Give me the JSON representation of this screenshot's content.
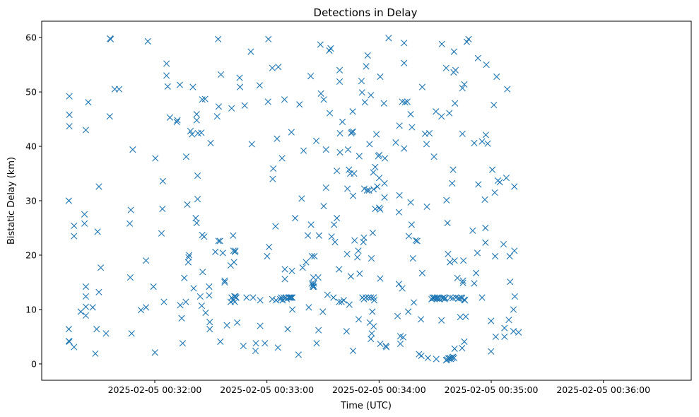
{
  "chart_data": {
    "type": "scatter",
    "title": "Detections in Delay",
    "xlabel": "Time (UTC)",
    "ylabel": "Bistatic Delay (km)",
    "marker": "x",
    "marker_color": "#1f77b4",
    "x_units": "seconds since 2025-02-05 00:31:00 UTC",
    "xlim": [
      -30.5,
      317
    ],
    "ylim": [
      -3,
      63
    ],
    "x_ticks": [
      {
        "value": 30,
        "label": "2025-02-05 00:32:00"
      },
      {
        "value": 90,
        "label": "2025-02-05 00:33:00"
      },
      {
        "value": 150,
        "label": "2025-02-05 00:34:00"
      },
      {
        "value": 210,
        "label": "2025-02-05 00:35:00"
      },
      {
        "value": 270,
        "label": "2025-02-05 00:36:00"
      }
    ],
    "y_ticks": [
      {
        "value": 0,
        "label": "0"
      },
      {
        "value": 10,
        "label": "10"
      },
      {
        "value": 20,
        "label": "20"
      },
      {
        "value": 30,
        "label": "30"
      },
      {
        "value": 40,
        "label": "40"
      },
      {
        "value": 50,
        "label": "50"
      },
      {
        "value": 60,
        "label": "60"
      }
    ],
    "points": [
      [
        -16,
        30
      ],
      [
        -16,
        6.4
      ],
      [
        -16,
        4.2
      ],
      [
        -15.7,
        4.1
      ],
      [
        -15.7,
        49.2
      ],
      [
        -15.7,
        45.8
      ],
      [
        -15.7,
        43.7
      ],
      [
        -13.2,
        25.4
      ],
      [
        -13.2,
        23.5
      ],
      [
        -13.2,
        3.1
      ],
      [
        -9.6,
        9.6
      ],
      [
        -7.6,
        27.5
      ],
      [
        -7.6,
        25.8
      ],
      [
        -6.9,
        43
      ],
      [
        -6.9,
        14.2
      ],
      [
        -6.9,
        12.4
      ],
      [
        -6.9,
        10.5
      ],
      [
        -6.9,
        8.9
      ],
      [
        -5.6,
        48.1
      ],
      [
        -3.2,
        10.4
      ],
      [
        -1.8,
        1.9
      ],
      [
        -1.1,
        6.4
      ],
      [
        -0.6,
        24.3
      ],
      [
        0.1,
        32.6
      ],
      [
        0.1,
        13.2
      ],
      [
        1.1,
        17.7
      ],
      [
        3.9,
        5.6
      ],
      [
        5.9,
        45.5
      ],
      [
        6.1,
        59.8
      ],
      [
        6.4,
        59.7
      ],
      [
        8.6,
        50.5
      ],
      [
        10.9,
        50.5
      ],
      [
        16.6,
        25.8
      ],
      [
        16.9,
        15.9
      ],
      [
        17.2,
        28.3
      ],
      [
        17.6,
        5.6
      ],
      [
        18.2,
        39.4
      ],
      [
        22.6,
        9.9
      ],
      [
        25.3,
        10.4
      ],
      [
        25.3,
        19
      ],
      [
        26.3,
        59.3
      ],
      [
        29.3,
        14.2
      ],
      [
        30.1,
        2.1
      ],
      [
        30.3,
        37.8
      ],
      [
        33.6,
        24
      ],
      [
        34.1,
        28.5
      ],
      [
        34.3,
        33.6
      ],
      [
        34.9,
        11.4
      ],
      [
        36.3,
        55.2
      ],
      [
        36.3,
        53
      ],
      [
        36.9,
        51
      ],
      [
        38.1,
        45.3
      ],
      [
        41.8,
        44.5
      ],
      [
        42.1,
        44.8
      ],
      [
        43.4,
        51.3
      ],
      [
        43.6,
        10.8
      ],
      [
        44.4,
        8.4
      ],
      [
        44.9,
        3.8
      ],
      [
        45.8,
        15.8
      ],
      [
        46.6,
        11.4
      ],
      [
        46.8,
        38.1
      ],
      [
        47.4,
        29.3
      ],
      [
        47.9,
        18.7
      ],
      [
        48.1,
        19.6
      ],
      [
        48.4,
        20
      ],
      [
        49.1,
        42.8
      ],
      [
        49.9,
        42.2
      ],
      [
        50.4,
        50.9
      ],
      [
        50.8,
        13.9
      ],
      [
        51.9,
        26.8
      ],
      [
        52.4,
        45.9
      ],
      [
        52.4,
        44.8
      ],
      [
        52.4,
        25.9
      ],
      [
        52.9,
        34.6
      ],
      [
        52.9,
        30.3
      ],
      [
        53.1,
        42.4
      ],
      [
        54.3,
        12.4
      ],
      [
        54.9,
        42.5
      ],
      [
        55.1,
        10.7
      ],
      [
        55.4,
        48.6
      ],
      [
        55.4,
        23.7
      ],
      [
        55.6,
        16.9
      ],
      [
        56.4,
        23.4
      ],
      [
        56.9,
        48.7
      ],
      [
        57.2,
        9.4
      ],
      [
        59.1,
        14.2
      ],
      [
        59.1,
        12.6
      ],
      [
        59.4,
        7.7
      ],
      [
        59.4,
        6.4
      ],
      [
        59.9,
        40.6
      ],
      [
        62.4,
        20.6
      ],
      [
        63.4,
        45.5
      ],
      [
        63.9,
        59.7
      ],
      [
        64.2,
        47.3
      ],
      [
        64.1,
        22.6
      ],
      [
        64.9,
        22.6
      ],
      [
        65.1,
        4.1
      ],
      [
        65.4,
        53.2
      ],
      [
        66.4,
        20.4
      ],
      [
        67.4,
        15
      ],
      [
        67.4,
        15.3
      ],
      [
        68.6,
        7.1
      ],
      [
        70.6,
        18.1
      ],
      [
        70.6,
        11.4
      ],
      [
        71.1,
        47
      ],
      [
        71.1,
        12.2
      ],
      [
        71.9,
        23.6
      ],
      [
        72.1,
        11.7
      ],
      [
        72.1,
        20.8
      ],
      [
        72.4,
        18.7
      ],
      [
        72.6,
        12.4
      ],
      [
        72.8,
        11.4
      ],
      [
        72.9,
        20.6
      ],
      [
        73.1,
        12.4
      ],
      [
        73.1,
        20.8
      ],
      [
        73.4,
        12.2
      ],
      [
        73.6,
        12.2
      ],
      [
        74.1,
        7.6
      ],
      [
        75.4,
        52.6
      ],
      [
        75.6,
        50.9
      ],
      [
        77.4,
        3.3
      ],
      [
        78.1,
        47.5
      ],
      [
        79.1,
        12.2
      ],
      [
        81.4,
        57.4
      ],
      [
        81.9,
        40.4
      ],
      [
        82.6,
        12.2
      ],
      [
        83.9,
        2.4
      ],
      [
        84.1,
        3.8
      ],
      [
        86.1,
        51.2
      ],
      [
        86.4,
        11.7
      ],
      [
        86.4,
        7
      ],
      [
        88.9,
        3.8
      ],
      [
        90.1,
        19.8
      ],
      [
        90.6,
        48.2
      ],
      [
        90.8,
        59.7
      ],
      [
        91.1,
        21.5
      ],
      [
        92.9,
        54.4
      ],
      [
        92.9,
        11.9
      ],
      [
        93.1,
        34
      ],
      [
        93.4,
        35.9
      ],
      [
        94.6,
        25.3
      ],
      [
        94.9,
        11.7
      ],
      [
        95.4,
        41.4
      ],
      [
        95.9,
        3
      ],
      [
        96.1,
        54.6
      ],
      [
        97.1,
        11.9
      ],
      [
        97.6,
        12.2
      ],
      [
        98.1,
        37.8
      ],
      [
        98.4,
        11.7
      ],
      [
        98.9,
        12.2
      ],
      [
        99.4,
        48.6
      ],
      [
        99.6,
        17.4
      ],
      [
        99.6,
        15.6
      ],
      [
        100.1,
        12.2
      ],
      [
        100.6,
        11.9
      ],
      [
        101.1,
        6.4
      ],
      [
        101.6,
        12.2
      ],
      [
        102.1,
        12.2
      ],
      [
        102.6,
        12.2
      ],
      [
        103.1,
        12.2
      ],
      [
        103.1,
        42.6
      ],
      [
        103.4,
        17.1
      ],
      [
        103.6,
        12.2
      ],
      [
        103.6,
        10
      ],
      [
        105.1,
        26.8
      ],
      [
        106.9,
        1.7
      ],
      [
        107.4,
        47.7
      ],
      [
        108.6,
        30.4
      ],
      [
        109.1,
        17.7
      ],
      [
        109.6,
        39.2
      ],
      [
        110.9,
        18.7
      ],
      [
        111.9,
        23.6
      ],
      [
        112.4,
        10.4
      ],
      [
        113.4,
        52.9
      ],
      [
        113.6,
        25.6
      ],
      [
        114.1,
        19.8
      ],
      [
        114.1,
        14.8
      ],
      [
        114.6,
        14.2
      ],
      [
        114.6,
        14.5
      ],
      [
        114.9,
        15.9
      ],
      [
        115.1,
        14.8
      ],
      [
        115.1,
        14.2
      ],
      [
        115.4,
        19.8
      ],
      [
        116.4,
        41
      ],
      [
        116.6,
        3.8
      ],
      [
        117.4,
        15.9
      ],
      [
        117.6,
        6.2
      ],
      [
        117.9,
        23.6
      ],
      [
        118.6,
        58.7
      ],
      [
        118.9,
        49.7
      ],
      [
        119.9,
        9.6
      ],
      [
        120.4,
        29
      ],
      [
        120.4,
        48.6
      ],
      [
        121.6,
        32.4
      ],
      [
        121.6,
        39.4
      ],
      [
        122.4,
        12.7
      ],
      [
        123.4,
        57.6
      ],
      [
        123.6,
        46.1
      ],
      [
        124.1,
        58
      ],
      [
        124.6,
        23.4
      ],
      [
        125.6,
        12.2
      ],
      [
        125.9,
        25.6
      ],
      [
        126.4,
        22.4
      ],
      [
        127.4,
        35.5
      ],
      [
        127.4,
        26.8
      ],
      [
        128.6,
        11.4
      ],
      [
        128.6,
        17.4
      ],
      [
        128.9,
        54
      ],
      [
        128.9,
        51.9
      ],
      [
        129.1,
        38.9
      ],
      [
        129.1,
        42.4
      ],
      [
        129.9,
        11.4
      ],
      [
        130.4,
        44.5
      ],
      [
        131.1,
        11.7
      ],
      [
        132.6,
        6
      ],
      [
        132.9,
        20.2
      ],
      [
        133.1,
        32.2
      ],
      [
        133.4,
        39.4
      ],
      [
        133.9,
        35.7
      ],
      [
        134.1,
        10.9
      ],
      [
        134.6,
        35
      ],
      [
        134.9,
        16.1
      ],
      [
        135.1,
        42.4
      ],
      [
        135.4,
        42.6
      ],
      [
        135.9,
        46.4
      ],
      [
        136.1,
        42.7
      ],
      [
        136.1,
        30.9
      ],
      [
        136.1,
        2.4
      ],
      [
        136.6,
        35
      ],
      [
        136.9,
        22.7
      ],
      [
        138.4,
        19.6
      ],
      [
        138.9,
        20.8
      ],
      [
        139.1,
        8.2
      ],
      [
        139.6,
        16.6
      ],
      [
        139.4,
        38.2
      ],
      [
        140.6,
        52
      ],
      [
        140.9,
        49.9
      ],
      [
        141.1,
        12.2
      ],
      [
        141.6,
        22.4
      ],
      [
        141.9,
        23.2
      ],
      [
        141.9,
        11.9
      ],
      [
        142.1,
        32.2
      ],
      [
        142.4,
        48.1
      ],
      [
        142.9,
        12.2
      ],
      [
        143.1,
        54.7
      ],
      [
        143.6,
        31.9
      ],
      [
        143.9,
        56.7
      ],
      [
        144.4,
        12.2
      ],
      [
        144.6,
        31.9
      ],
      [
        144.9,
        40.4
      ],
      [
        145.6,
        49.4
      ],
      [
        145.6,
        12.2
      ],
      [
        145.1,
        7.6
      ],
      [
        145.6,
        4.6
      ],
      [
        145.9,
        19.4
      ],
      [
        146.1,
        5.6
      ],
      [
        146.4,
        9.6
      ],
      [
        146.6,
        24.1
      ],
      [
        146.9,
        35.2
      ],
      [
        147.1,
        12.2
      ],
      [
        147.1,
        32.1
      ],
      [
        147.1,
        6.9
      ],
      [
        147.4,
        11.7
      ],
      [
        147.9,
        36.2
      ],
      [
        147.9,
        28.5
      ],
      [
        148.6,
        42.2
      ],
      [
        149.1,
        32.6
      ],
      [
        149.6,
        38.2
      ],
      [
        150.1,
        28.7
      ],
      [
        150.1,
        38.4
      ],
      [
        150.6,
        52.8
      ],
      [
        150.6,
        15.7
      ],
      [
        150.6,
        28.4
      ],
      [
        150.6,
        3.7
      ],
      [
        150.1,
        34.2
      ],
      [
        152.6,
        47.9
      ],
      [
        152.9,
        30.6
      ],
      [
        152.9,
        33.2
      ],
      [
        153.1,
        37.8
      ],
      [
        153.6,
        3.3
      ],
      [
        153.9,
        3.1
      ],
      [
        155.1,
        59.9
      ],
      [
        158.9,
        40.7
      ],
      [
        159.9,
        8.8
      ],
      [
        160.6,
        14.7
      ],
      [
        160.6,
        27.9
      ],
      [
        160.9,
        31
      ],
      [
        160.9,
        43.8
      ],
      [
        161.4,
        5.1
      ],
      [
        161.4,
        3.7
      ],
      [
        162.4,
        48.2
      ],
      [
        162.4,
        13.9
      ],
      [
        162.9,
        4.9
      ],
      [
        163.4,
        59
      ],
      [
        163.4,
        55.3
      ],
      [
        163.4,
        39.6
      ],
      [
        163.9,
        48.1
      ],
      [
        165.1,
        48.2
      ],
      [
        165.6,
        9.6
      ],
      [
        165.9,
        23.5
      ],
      [
        166.9,
        45.9
      ],
      [
        166.9,
        29.7
      ],
      [
        167.4,
        25.6
      ],
      [
        167.6,
        43.5
      ],
      [
        168.1,
        19.4
      ],
      [
        168.6,
        11.3
      ],
      [
        169.6,
        22.7
      ],
      [
        170.4,
        22.6
      ],
      [
        171.4,
        1.8
      ],
      [
        172.6,
        1.5
      ],
      [
        172.4,
        8.2
      ],
      [
        173.1,
        50.9
      ],
      [
        173.1,
        16.7
      ],
      [
        174.6,
        42.3
      ],
      [
        175.4,
        40.4
      ],
      [
        175.6,
        28.9
      ],
      [
        176.1,
        1.1
      ],
      [
        176.9,
        42.4
      ],
      [
        178.1,
        11.9
      ],
      [
        178.6,
        12.2
      ],
      [
        179.1,
        12.1
      ],
      [
        179.4,
        38.1
      ],
      [
        179.6,
        12.2
      ],
      [
        180.1,
        12.1
      ],
      [
        180.6,
        0.9
      ],
      [
        180.4,
        46.4
      ],
      [
        180.9,
        12
      ],
      [
        181.1,
        12.2
      ],
      [
        181.4,
        12.1
      ],
      [
        181.9,
        12
      ],
      [
        182.4,
        11.9
      ],
      [
        183.4,
        45.5
      ],
      [
        183.4,
        8
      ],
      [
        183.6,
        58.8
      ],
      [
        183.9,
        12.1
      ],
      [
        184.6,
        12.2
      ],
      [
        185.1,
        11.9
      ],
      [
        185.4,
        12.1
      ],
      [
        185.9,
        0.7
      ],
      [
        185.9,
        54.4
      ],
      [
        186.1,
        30.1
      ],
      [
        186.4,
        0.8
      ],
      [
        186.6,
        25.9
      ],
      [
        186.9,
        20.2
      ],
      [
        187.1,
        1
      ],
      [
        187.4,
        1
      ],
      [
        187.6,
        46.1
      ],
      [
        187.9,
        18.7
      ],
      [
        187.9,
        1.1
      ],
      [
        188.1,
        12.2
      ],
      [
        188.4,
        0.9
      ],
      [
        188.9,
        1.2
      ],
      [
        189.1,
        33.2
      ],
      [
        189.1,
        1.1
      ],
      [
        189.4,
        12.1
      ],
      [
        189.6,
        35.7
      ],
      [
        189.6,
        1.3
      ],
      [
        189.9,
        53.6
      ],
      [
        190.1,
        57.4
      ],
      [
        190.1,
        1.1
      ],
      [
        190.4,
        2.8
      ],
      [
        190.4,
        19
      ],
      [
        190.6,
        47.9
      ],
      [
        190.9,
        54
      ],
      [
        191.1,
        12.2
      ],
      [
        191.9,
        15.8
      ],
      [
        192.4,
        12
      ],
      [
        192.9,
        12.1
      ],
      [
        193.4,
        8.6
      ],
      [
        193.9,
        12.2
      ],
      [
        194.4,
        2.9
      ],
      [
        194.4,
        12.1
      ],
      [
        194.6,
        42.3
      ],
      [
        194.6,
        50.7
      ],
      [
        194.9,
        15.3
      ],
      [
        194.9,
        14.9
      ],
      [
        195.1,
        19
      ],
      [
        195.6,
        4.1
      ],
      [
        195.6,
        11.8
      ],
      [
        195.6,
        51.4
      ],
      [
        195.9,
        11.7
      ],
      [
        196.4,
        8.7
      ],
      [
        196.9,
        59.2
      ],
      [
        197.9,
        59.7
      ],
      [
        200.1,
        24.5
      ],
      [
        200.9,
        14.8
      ],
      [
        200.9,
        40.6
      ],
      [
        201.9,
        16.7
      ],
      [
        202.6,
        20.4
      ],
      [
        202.9,
        56.2
      ],
      [
        203.1,
        33
      ],
      [
        205.1,
        12.2
      ],
      [
        205.1,
        40.9
      ],
      [
        206.6,
        30.2
      ],
      [
        206.9,
        25
      ],
      [
        206.9,
        22.3
      ],
      [
        207.1,
        42.1
      ],
      [
        207.4,
        55
      ],
      [
        208.1,
        40.5
      ],
      [
        209.9,
        7.9
      ],
      [
        209.9,
        2.3
      ],
      [
        210.6,
        35.7
      ],
      [
        211.4,
        47.6
      ],
      [
        211.9,
        31.5
      ],
      [
        212.1,
        19.8
      ],
      [
        212.4,
        5
      ],
      [
        212.9,
        52.8
      ],
      [
        213.6,
        33.7
      ],
      [
        214.6,
        33.4
      ],
      [
        216.6,
        22
      ],
      [
        217.1,
        5
      ],
      [
        217.1,
        6.6
      ],
      [
        218.1,
        34.2
      ],
      [
        218.6,
        50.5
      ],
      [
        219.4,
        8.1
      ],
      [
        219.9,
        19.8
      ],
      [
        220.1,
        15.1
      ],
      [
        221.9,
        10
      ],
      [
        221.9,
        6
      ],
      [
        222.4,
        32.6
      ],
      [
        222.4,
        20.8
      ],
      [
        222.6,
        12.4
      ],
      [
        224.6,
        5.8
      ]
    ]
  }
}
